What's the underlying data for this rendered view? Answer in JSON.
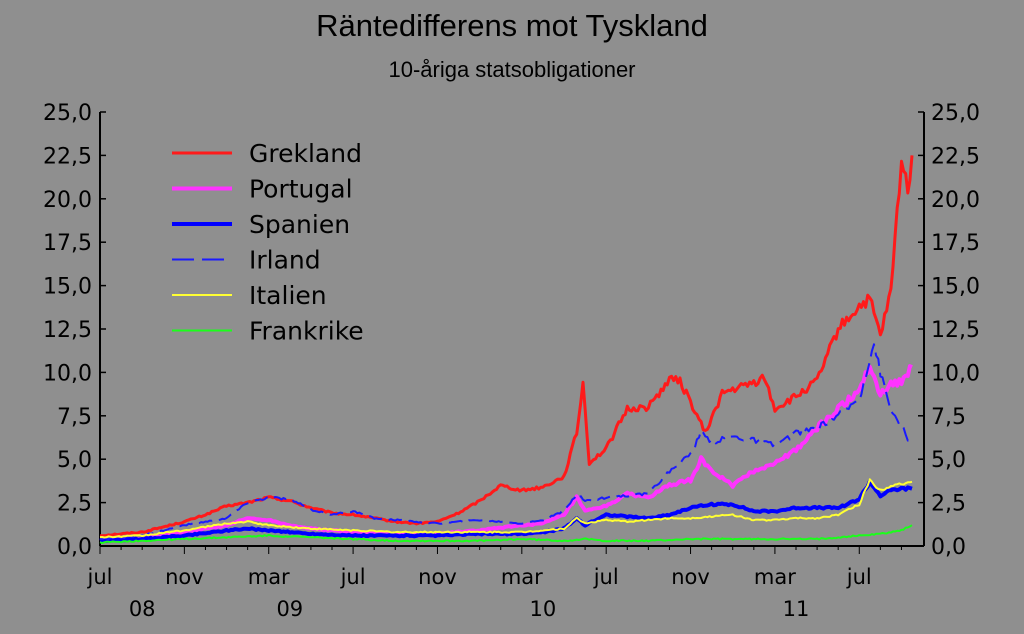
{
  "chart_data": {
    "type": "line",
    "title": "Räntedifferens mot Tyskland",
    "subtitle": "10-åriga statsobligationer",
    "ylim": [
      0,
      25
    ],
    "yticks": [
      "0,0",
      "2,5",
      "5,0",
      "7,5",
      "10,0",
      "12,5",
      "15,0",
      "17,5",
      "20,0",
      "22,5",
      "25,0"
    ],
    "xlim": [
      0,
      38.5
    ],
    "x_unit": "months since 2008-07-01",
    "xticks": [
      {
        "pos": 0,
        "label": "jul"
      },
      {
        "pos": 4,
        "label": "nov"
      },
      {
        "pos": 8,
        "label": "mar"
      },
      {
        "pos": 12,
        "label": "jul"
      },
      {
        "pos": 16,
        "label": "nov"
      },
      {
        "pos": 20,
        "label": "mar"
      },
      {
        "pos": 24,
        "label": "jul"
      },
      {
        "pos": 28,
        "label": "nov"
      },
      {
        "pos": 32,
        "label": "mar"
      },
      {
        "pos": 36,
        "label": "jul"
      }
    ],
    "year_labels": [
      {
        "pos": 2,
        "label": "08"
      },
      {
        "pos": 9,
        "label": "09"
      },
      {
        "pos": 21,
        "label": "10"
      },
      {
        "pos": 33,
        "label": "11"
      }
    ],
    "series": [
      {
        "name": "Grekland",
        "color": "#ff1a1a",
        "width": 3,
        "dash": "",
        "points": [
          [
            0,
            0.6
          ],
          [
            2,
            0.8
          ],
          [
            3,
            1.1
          ],
          [
            4,
            1.4
          ],
          [
            5,
            1.8
          ],
          [
            6,
            2.3
          ],
          [
            7,
            2.5
          ],
          [
            8,
            2.8
          ],
          [
            9,
            2.6
          ],
          [
            10,
            2.2
          ],
          [
            11,
            1.9
          ],
          [
            12,
            1.8
          ],
          [
            13,
            1.6
          ],
          [
            14,
            1.4
          ],
          [
            15,
            1.3
          ],
          [
            16,
            1.4
          ],
          [
            17,
            1.9
          ],
          [
            18,
            2.6
          ],
          [
            19,
            3.5
          ],
          [
            20,
            3.2
          ],
          [
            21,
            3.4
          ],
          [
            22,
            4.0
          ],
          [
            22.6,
            6.5
          ],
          [
            22.9,
            9.4
          ],
          [
            23.2,
            4.8
          ],
          [
            24,
            5.6
          ],
          [
            25,
            7.9
          ],
          [
            26,
            8.0
          ],
          [
            27,
            9.6
          ],
          [
            27.5,
            9.5
          ],
          [
            28,
            8.3
          ],
          [
            28.7,
            6.5
          ],
          [
            29.5,
            8.8
          ],
          [
            30,
            9.0
          ],
          [
            31,
            9.4
          ],
          [
            31.5,
            9.7
          ],
          [
            32,
            7.9
          ],
          [
            33,
            8.6
          ],
          [
            34,
            9.5
          ],
          [
            35,
            12.5
          ],
          [
            36,
            13.8
          ],
          [
            36.5,
            14.2
          ],
          [
            37,
            12.1
          ],
          [
            37.5,
            14.6
          ],
          [
            38,
            22.2
          ],
          [
            38.3,
            20.5
          ],
          [
            38.5,
            22.5
          ]
        ]
      },
      {
        "name": "Portugal",
        "color": "#ff33ff",
        "width": 4,
        "dash": "",
        "points": [
          [
            0,
            0.3
          ],
          [
            2,
            0.4
          ],
          [
            4,
            0.8
          ],
          [
            6,
            1.2
          ],
          [
            7,
            1.6
          ],
          [
            8,
            1.5
          ],
          [
            9,
            1.2
          ],
          [
            10,
            1.0
          ],
          [
            12,
            0.8
          ],
          [
            14,
            0.7
          ],
          [
            16,
            0.7
          ],
          [
            18,
            0.9
          ],
          [
            20,
            1.2
          ],
          [
            21,
            1.3
          ],
          [
            22,
            1.8
          ],
          [
            22.6,
            2.8
          ],
          [
            23,
            2.0
          ],
          [
            24,
            2.3
          ],
          [
            25,
            3.0
          ],
          [
            26,
            2.8
          ],
          [
            27,
            3.5
          ],
          [
            28,
            3.8
          ],
          [
            28.5,
            5.0
          ],
          [
            29,
            4.3
          ],
          [
            30,
            3.5
          ],
          [
            31,
            4.3
          ],
          [
            32,
            4.8
          ],
          [
            33,
            5.5
          ],
          [
            34,
            6.8
          ],
          [
            35,
            7.9
          ],
          [
            36,
            9.0
          ],
          [
            36.5,
            10.5
          ],
          [
            37,
            8.7
          ],
          [
            37.5,
            9.4
          ],
          [
            38,
            9.5
          ],
          [
            38.5,
            10.3
          ]
        ]
      },
      {
        "name": "Spanien",
        "color": "#0000ff",
        "width": 4,
        "dash": "",
        "points": [
          [
            0,
            0.3
          ],
          [
            2,
            0.4
          ],
          [
            4,
            0.6
          ],
          [
            6,
            0.9
          ],
          [
            7,
            1.0
          ],
          [
            8,
            0.9
          ],
          [
            10,
            0.7
          ],
          [
            12,
            0.6
          ],
          [
            14,
            0.6
          ],
          [
            16,
            0.6
          ],
          [
            18,
            0.7
          ],
          [
            20,
            0.7
          ],
          [
            21,
            0.8
          ],
          [
            22,
            1.0
          ],
          [
            22.6,
            1.6
          ],
          [
            23,
            1.2
          ],
          [
            24,
            1.8
          ],
          [
            25,
            1.7
          ],
          [
            26,
            1.6
          ],
          [
            27,
            1.8
          ],
          [
            28,
            2.2
          ],
          [
            29,
            2.4
          ],
          [
            30,
            2.4
          ],
          [
            31,
            2.0
          ],
          [
            32,
            2.0
          ],
          [
            33,
            2.2
          ],
          [
            34,
            2.2
          ],
          [
            35,
            2.2
          ],
          [
            36,
            2.7
          ],
          [
            36.5,
            3.7
          ],
          [
            37,
            2.9
          ],
          [
            37.5,
            3.2
          ],
          [
            38,
            3.3
          ],
          [
            38.5,
            3.3
          ]
        ]
      },
      {
        "name": "Irland",
        "color": "#1a1aff",
        "width": 2,
        "dash": "14,7",
        "points": [
          [
            0,
            0.4
          ],
          [
            2,
            0.6
          ],
          [
            4,
            1.2
          ],
          [
            6,
            1.6
          ],
          [
            7,
            2.5
          ],
          [
            8,
            2.8
          ],
          [
            9,
            2.7
          ],
          [
            10,
            2.1
          ],
          [
            11,
            1.8
          ],
          [
            12,
            2.0
          ],
          [
            13,
            1.6
          ],
          [
            14,
            1.5
          ],
          [
            16,
            1.3
          ],
          [
            18,
            1.5
          ],
          [
            20,
            1.3
          ],
          [
            21,
            1.5
          ],
          [
            22,
            2.0
          ],
          [
            22.6,
            3.0
          ],
          [
            23,
            2.6
          ],
          [
            24,
            2.8
          ],
          [
            25,
            2.9
          ],
          [
            26,
            3.0
          ],
          [
            27,
            4.3
          ],
          [
            28,
            5.3
          ],
          [
            28.5,
            6.5
          ],
          [
            29,
            6.0
          ],
          [
            30,
            6.3
          ],
          [
            31,
            6.1
          ],
          [
            32,
            5.8
          ],
          [
            33,
            6.5
          ],
          [
            34,
            6.8
          ],
          [
            35,
            7.5
          ],
          [
            36,
            8.5
          ],
          [
            36.7,
            11.7
          ],
          [
            37,
            10.0
          ],
          [
            37.5,
            7.8
          ],
          [
            38,
            7.0
          ],
          [
            38.3,
            6.0
          ],
          [
            38.5,
            6.4
          ]
        ]
      },
      {
        "name": "Italien",
        "color": "#ffff33",
        "width": 2,
        "dash": "",
        "points": [
          [
            0,
            0.5
          ],
          [
            2,
            0.6
          ],
          [
            4,
            0.9
          ],
          [
            6,
            1.3
          ],
          [
            7,
            1.4
          ],
          [
            8,
            1.2
          ],
          [
            10,
            1.0
          ],
          [
            12,
            0.9
          ],
          [
            14,
            0.8
          ],
          [
            16,
            0.8
          ],
          [
            18,
            0.8
          ],
          [
            20,
            0.8
          ],
          [
            21,
            0.9
          ],
          [
            22,
            1.0
          ],
          [
            22.6,
            1.6
          ],
          [
            23,
            1.3
          ],
          [
            24,
            1.5
          ],
          [
            25,
            1.4
          ],
          [
            26,
            1.5
          ],
          [
            27,
            1.6
          ],
          [
            28,
            1.6
          ],
          [
            29,
            1.7
          ],
          [
            30,
            1.8
          ],
          [
            31,
            1.5
          ],
          [
            32,
            1.5
          ],
          [
            33,
            1.6
          ],
          [
            34,
            1.6
          ],
          [
            35,
            1.8
          ],
          [
            36,
            2.4
          ],
          [
            36.5,
            3.8
          ],
          [
            37,
            3.2
          ],
          [
            37.5,
            3.5
          ],
          [
            38,
            3.6
          ],
          [
            38.5,
            3.7
          ]
        ]
      },
      {
        "name": "Frankrike",
        "color": "#1aff1a",
        "width": 2,
        "dash": "",
        "points": [
          [
            0,
            0.2
          ],
          [
            2,
            0.3
          ],
          [
            4,
            0.4
          ],
          [
            6,
            0.5
          ],
          [
            8,
            0.6
          ],
          [
            10,
            0.5
          ],
          [
            12,
            0.4
          ],
          [
            14,
            0.3
          ],
          [
            16,
            0.3
          ],
          [
            18,
            0.3
          ],
          [
            20,
            0.4
          ],
          [
            22,
            0.3
          ],
          [
            23,
            0.4
          ],
          [
            24,
            0.3
          ],
          [
            26,
            0.3
          ],
          [
            28,
            0.4
          ],
          [
            30,
            0.4
          ],
          [
            32,
            0.4
          ],
          [
            34,
            0.4
          ],
          [
            36,
            0.6
          ],
          [
            37,
            0.7
          ],
          [
            38,
            0.9
          ],
          [
            38.5,
            1.2
          ]
        ]
      }
    ]
  }
}
